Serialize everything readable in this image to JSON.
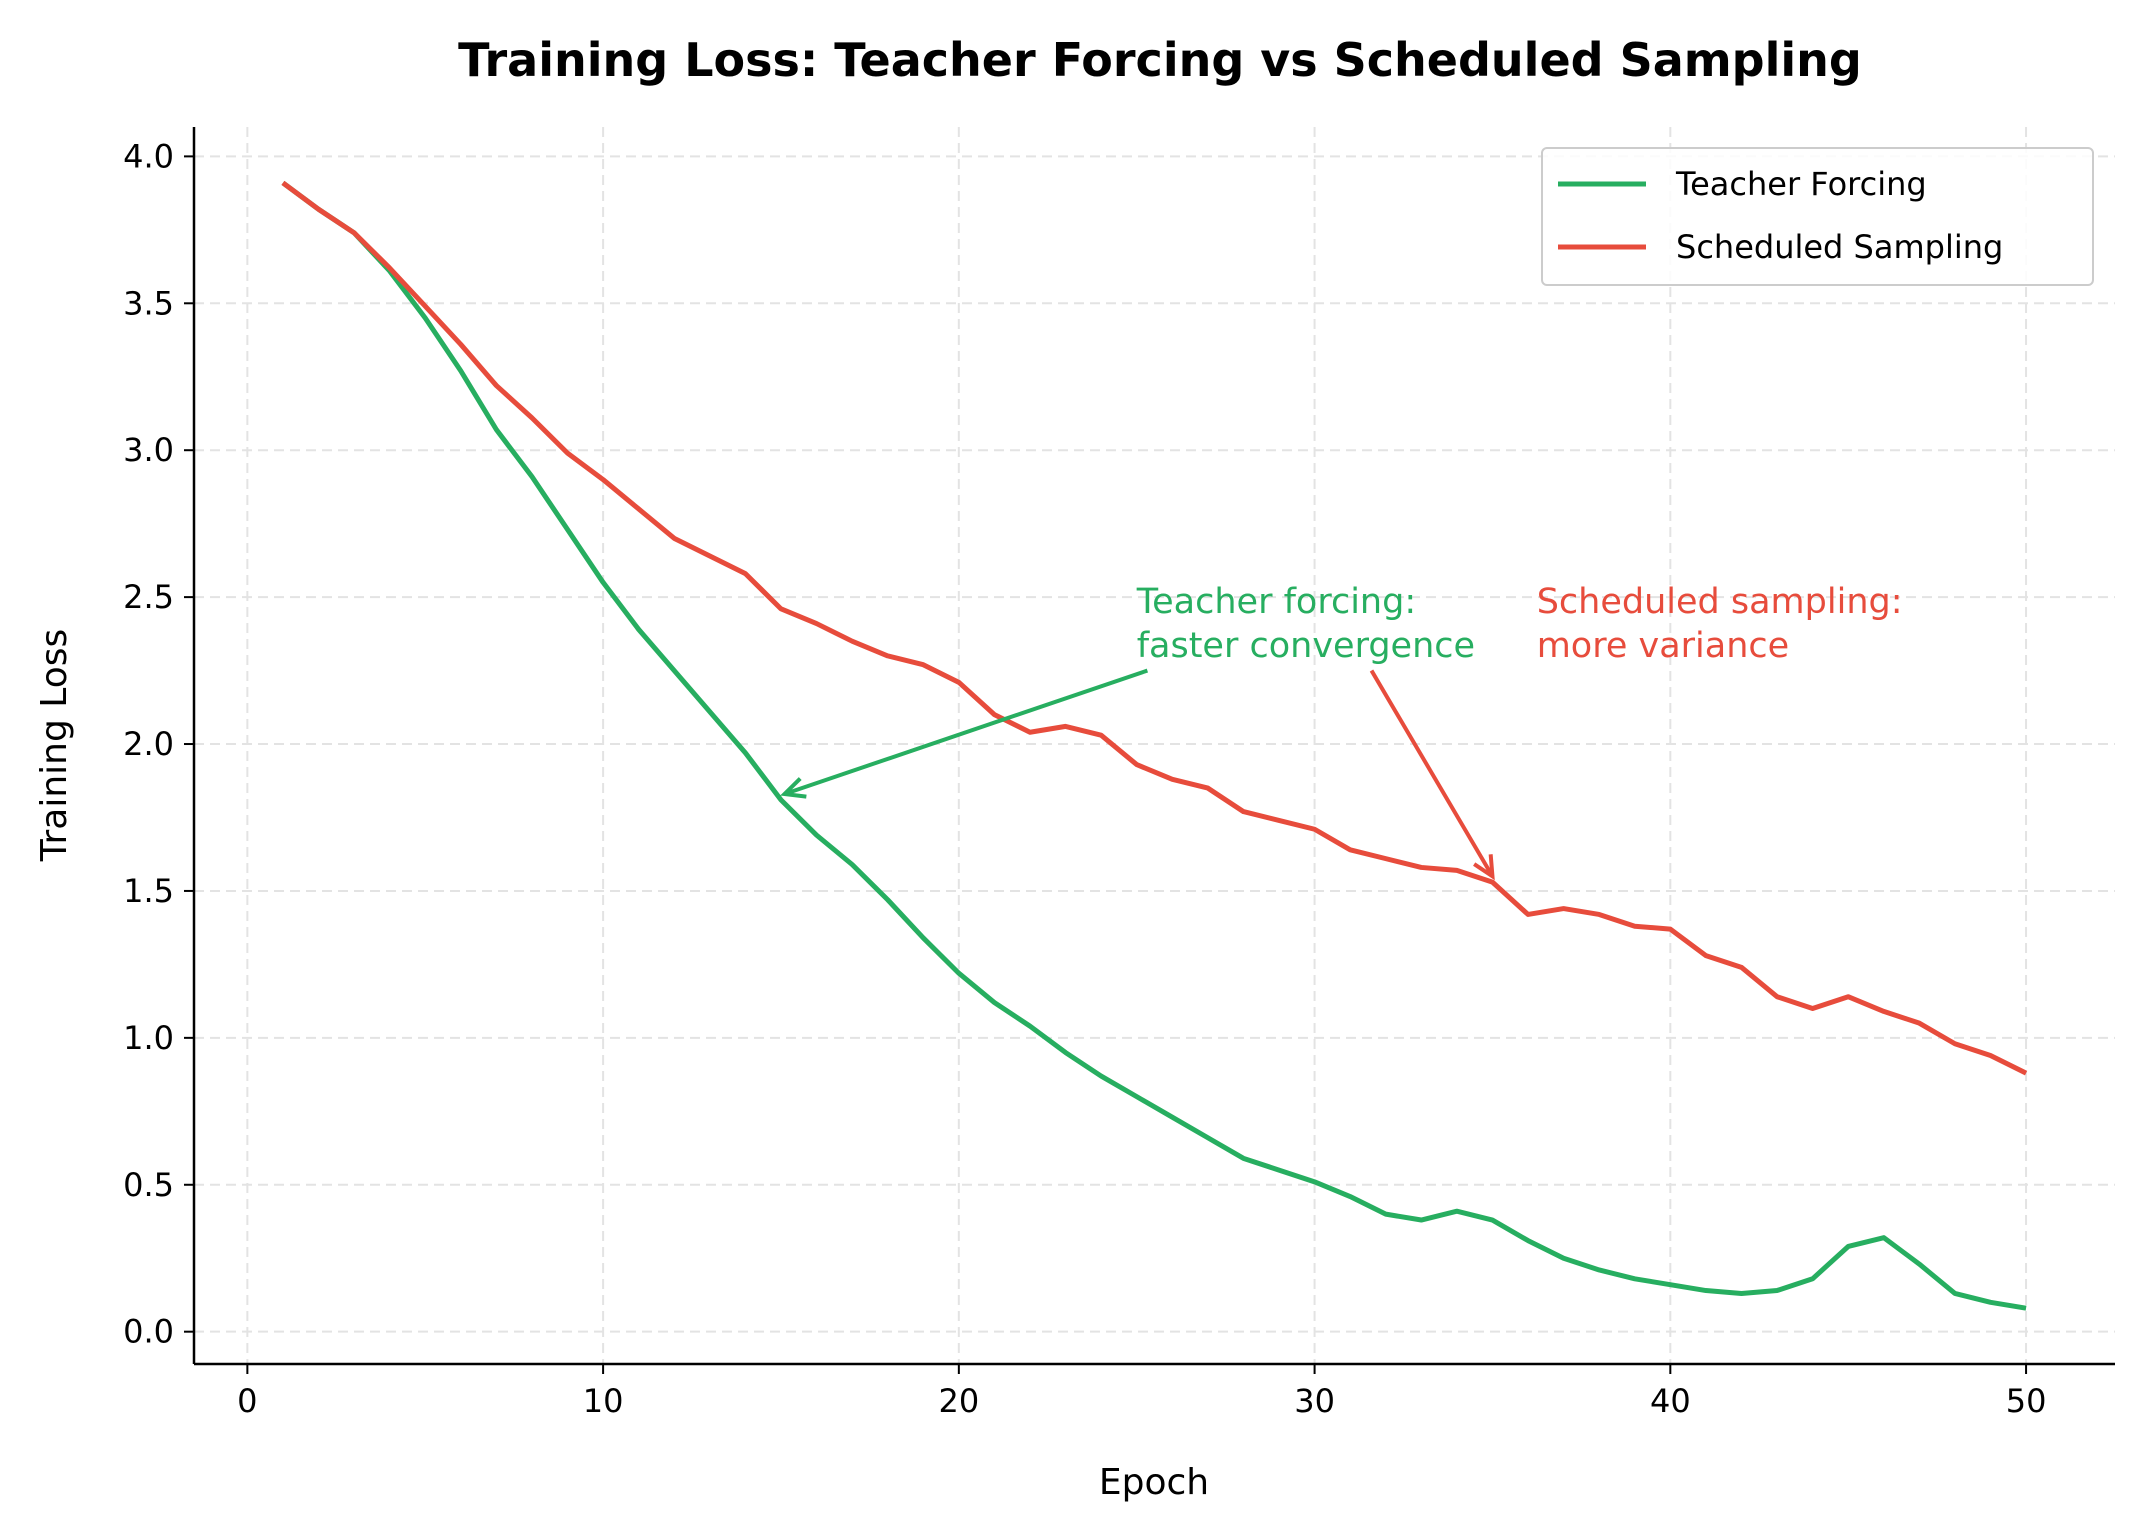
{
  "chart_data": {
    "type": "line",
    "title": "Training Loss: Teacher Forcing vs Scheduled Sampling",
    "xlabel": "Epoch",
    "ylabel": "Training Loss",
    "xlim": [
      -1.5,
      52.5
    ],
    "ylim": [
      -0.11,
      4.1
    ],
    "xticks": [
      0,
      10,
      20,
      30,
      40,
      50
    ],
    "xtick_labels": [
      "0",
      "10",
      "20",
      "30",
      "40",
      "50"
    ],
    "yticks": [
      0,
      0.5,
      1,
      1.5,
      2,
      2.5,
      3,
      3.5,
      4
    ],
    "ytick_labels": [
      "0.0",
      "0.5",
      "1.0",
      "1.5",
      "2.0",
      "2.5",
      "3.0",
      "3.5",
      "4.0"
    ],
    "grid": true,
    "legend_position": "top-right",
    "x": [
      1,
      2,
      3,
      4,
      5,
      6,
      7,
      8,
      9,
      10,
      11,
      12,
      13,
      14,
      15,
      16,
      17,
      18,
      19,
      20,
      21,
      22,
      23,
      24,
      25,
      26,
      27,
      28,
      29,
      30,
      31,
      32,
      33,
      34,
      35,
      36,
      37,
      38,
      39,
      40,
      41,
      42,
      43,
      44,
      45,
      46,
      47,
      48,
      49,
      50
    ],
    "series": [
      {
        "name": "Teacher Forcing",
        "color": "#27ae60",
        "values": [
          3.91,
          3.82,
          3.74,
          3.61,
          3.45,
          3.27,
          3.07,
          2.91,
          2.73,
          2.55,
          2.39,
          2.25,
          2.11,
          1.97,
          1.81,
          1.69,
          1.59,
          1.47,
          1.34,
          1.22,
          1.12,
          1.04,
          0.95,
          0.87,
          0.8,
          0.73,
          0.66,
          0.59,
          0.55,
          0.51,
          0.46,
          0.4,
          0.38,
          0.41,
          0.38,
          0.31,
          0.25,
          0.21,
          0.18,
          0.16,
          0.14,
          0.13,
          0.14,
          0.18,
          0.29,
          0.32,
          0.23,
          0.13,
          0.1,
          0.08
        ]
      },
      {
        "name": "Scheduled Sampling",
        "color": "#e74c3c",
        "values": [
          3.91,
          3.82,
          3.74,
          3.62,
          3.49,
          3.36,
          3.22,
          3.11,
          2.99,
          2.9,
          2.8,
          2.7,
          2.64,
          2.58,
          2.46,
          2.41,
          2.35,
          2.3,
          2.27,
          2.21,
          2.1,
          2.04,
          2.06,
          2.03,
          1.93,
          1.88,
          1.85,
          1.77,
          1.74,
          1.71,
          1.64,
          1.61,
          1.58,
          1.57,
          1.53,
          1.42,
          1.44,
          1.42,
          1.38,
          1.37,
          1.28,
          1.24,
          1.14,
          1.1,
          1.14,
          1.09,
          1.05,
          0.98,
          0.94,
          0.88
        ]
      }
    ],
    "annotations": [
      {
        "lines": [
          "Teacher forcing:",
          "faster convergence"
        ],
        "color": "#27ae60",
        "text_at": [
          25,
          2.5
        ],
        "arrow_from": [
          25.3,
          2.25
        ],
        "arrow_to": [
          15.1,
          1.83
        ]
      },
      {
        "lines": [
          "Scheduled sampling:",
          "more variance"
        ],
        "color": "#e74c3c",
        "text_at": [
          25,
          2.5
        ],
        "arrow_from": [
          31.6,
          2.25
        ],
        "arrow_to": [
          35,
          1.55
        ]
      }
    ]
  }
}
